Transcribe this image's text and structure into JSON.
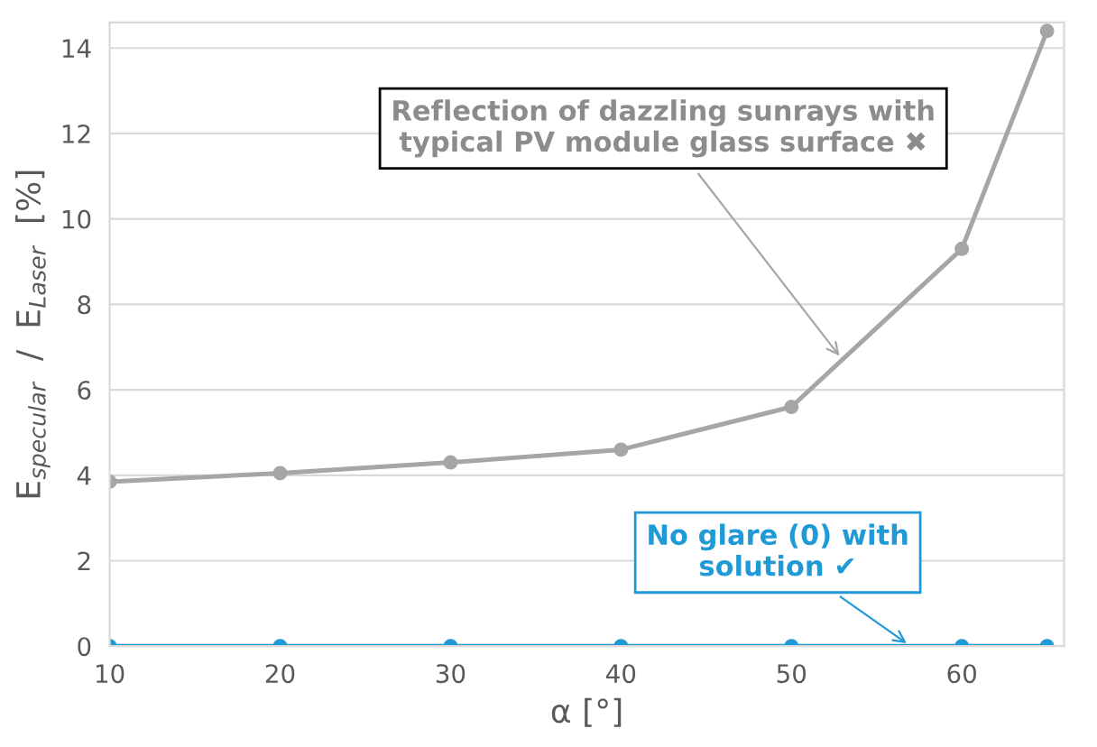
{
  "chart_data": {
    "type": "line",
    "x": [
      10,
      20,
      30,
      40,
      50,
      60,
      65
    ],
    "series": [
      {
        "color": "#a6a6a6",
        "values": [
          3.85,
          4.05,
          4.3,
          4.6,
          5.6,
          9.3,
          14.4
        ]
      },
      {
        "color": "#1f9ad6",
        "values": [
          0,
          0,
          0,
          0,
          0,
          0,
          0
        ]
      }
    ],
    "xlabel": "α [°]",
    "ylabel": "E$_{specular}$  /  E$_{Laser}$  [%]",
    "xlim": [
      10,
      66
    ],
    "xticks": [
      10,
      20,
      30,
      40,
      50,
      60
    ],
    "ylim": [
      0,
      14.6
    ],
    "yticks": [
      0,
      2,
      4,
      6,
      8,
      10,
      12,
      14
    ],
    "grid": "y",
    "marker": "circle",
    "line_style": "solid",
    "annotations": [
      {
        "text": "Reflection of dazzling sunrays with\ntypical PV module glass surface ✖",
        "x": 53,
        "y": 6.7
      },
      {
        "text": "No glare (0) with\nsolution ✔",
        "x": 57,
        "y": 0
      }
    ]
  }
}
